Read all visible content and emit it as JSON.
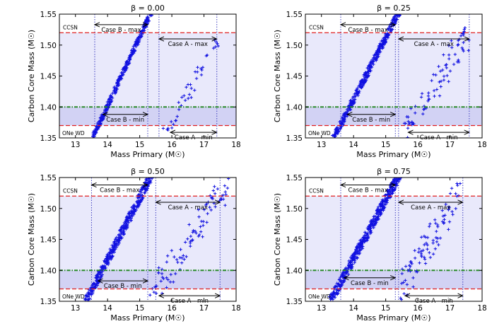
{
  "figure": {
    "shared": {
      "type": "scatter",
      "xlabel": "Mass Primary (M☉)",
      "ylabel": "Carbon Core Mass (M☉)",
      "xlim": [
        12.5,
        18
      ],
      "ylim": [
        1.35,
        1.55
      ],
      "xticks": [
        "13",
        "14",
        "15",
        "16",
        "17",
        "18"
      ],
      "yticks": [
        "1.35",
        "1.40",
        "1.45",
        "1.50",
        "1.55"
      ],
      "lines": {
        "ccsn": 1.52,
        "onewd": 1.37,
        "green": 1.4
      },
      "labels": {
        "ccsn": "CCSN",
        "onewd": "ONe WD"
      },
      "colors": {
        "points": "#1010e0",
        "red": "#e02020",
        "green": "#2a8a2a",
        "band": "#e9e9fb",
        "band_dark": "#d2d2f4",
        "vline": "#4040c0"
      }
    }
  },
  "chart_data": [
    {
      "type": "scatter",
      "title": "β = 0.00",
      "xlabel": "Mass Primary (M☉)",
      "ylabel": "Carbon Core Mass (M☉)",
      "xlim": [
        12.5,
        18
      ],
      "ylim": [
        1.35,
        1.55
      ],
      "vlines": [
        13.6,
        15.25,
        15.6,
        17.4
      ],
      "annotations": [
        {
          "text": "Case B - max",
          "x1": 13.6,
          "x2": 15.25,
          "y": 1.533
        },
        {
          "text": "Case A - max",
          "x1": 15.6,
          "x2": 17.4,
          "y": 1.51
        },
        {
          "text": "Case B - min",
          "x1": 13.85,
          "x2": 15.25,
          "y": 1.388
        },
        {
          "text": "Case A - min",
          "x1": 15.95,
          "x2": 17.4,
          "y": 1.359
        }
      ],
      "caseB": {
        "x0": 13.55,
        "x1": 15.35,
        "y0": 1.352,
        "y1": 1.552,
        "width": 0.12,
        "n": 330
      },
      "caseA": {
        "x0": 15.8,
        "x1": 17.4,
        "y0": 1.36,
        "y1": 1.505,
        "width": 0.015,
        "n": 40
      }
    },
    {
      "type": "scatter",
      "title": "β = 0.25",
      "xlabel": "Mass Primary (M☉)",
      "ylabel": "Carbon Core Mass (M☉)",
      "xlim": [
        12.5,
        18
      ],
      "ylim": [
        1.35,
        1.55
      ],
      "vlines": [
        13.6,
        15.3,
        15.4,
        17.6
      ],
      "annotations": [
        {
          "text": "Case B - max",
          "x1": 13.6,
          "x2": 15.3,
          "y": 1.533
        },
        {
          "text": "Case A - max",
          "x1": 15.4,
          "x2": 17.6,
          "y": 1.51
        },
        {
          "text": "Case B - min",
          "x1": 13.8,
          "x2": 15.3,
          "y": 1.388
        },
        {
          "text": "Case A - min",
          "x1": 15.7,
          "x2": 17.6,
          "y": 1.359
        }
      ],
      "caseB": {
        "x0": 13.4,
        "x1": 15.4,
        "y0": 1.352,
        "y1": 1.552,
        "width": 0.16,
        "n": 380
      },
      "caseA": {
        "x0": 15.5,
        "x1": 17.6,
        "y0": 1.355,
        "y1": 1.52,
        "width": 0.045,
        "n": 80
      }
    },
    {
      "type": "scatter",
      "title": "β = 0.50",
      "xlabel": "Mass Primary (M☉)",
      "ylabel": "Carbon Core Mass (M☉)",
      "xlim": [
        12.5,
        18
      ],
      "ylim": [
        1.35,
        1.55
      ],
      "vlines": [
        13.5,
        15.25,
        15.5,
        17.5
      ],
      "annotations": [
        {
          "text": "Case B - max",
          "x1": 13.5,
          "x2": 15.25,
          "y": 1.538
        },
        {
          "text": "Case A - max",
          "x1": 15.5,
          "x2": 17.5,
          "y": 1.51
        },
        {
          "text": "Case B - min",
          "x1": 13.7,
          "x2": 15.25,
          "y": 1.383
        },
        {
          "text": "Case A - min",
          "x1": 15.6,
          "x2": 17.5,
          "y": 1.359
        }
      ],
      "caseB": {
        "x0": 13.35,
        "x1": 15.35,
        "y0": 1.352,
        "y1": 1.552,
        "width": 0.2,
        "n": 420
      },
      "caseA": {
        "x0": 15.35,
        "x1": 17.7,
        "y0": 1.355,
        "y1": 1.54,
        "width": 0.05,
        "n": 90
      }
    },
    {
      "type": "scatter",
      "title": "β = 0.75",
      "xlabel": "Mass Primary (M☉)",
      "ylabel": "Carbon Core Mass (M☉)",
      "xlim": [
        12.5,
        18
      ],
      "ylim": [
        1.35,
        1.55
      ],
      "vlines": [
        13.6,
        15.3,
        15.4,
        17.4
      ],
      "annotations": [
        {
          "text": "Case B - max",
          "x1": 13.6,
          "x2": 15.3,
          "y": 1.538
        },
        {
          "text": "Case A - max",
          "x1": 15.4,
          "x2": 17.4,
          "y": 1.51
        },
        {
          "text": "Case B - min",
          "x1": 13.7,
          "x2": 15.3,
          "y": 1.388
        },
        {
          "text": "Case A - min",
          "x1": 15.6,
          "x2": 17.4,
          "y": 1.359
        }
      ],
      "caseB": {
        "x0": 13.3,
        "x1": 15.4,
        "y0": 1.352,
        "y1": 1.552,
        "width": 0.22,
        "n": 460
      },
      "caseA": {
        "x0": 15.3,
        "x1": 17.3,
        "y0": 1.355,
        "y1": 1.525,
        "width": 0.05,
        "n": 90
      }
    }
  ]
}
